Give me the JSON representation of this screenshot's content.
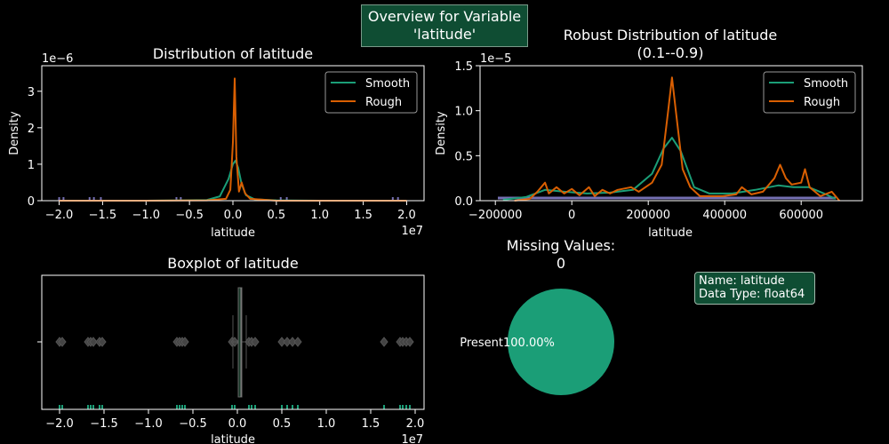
{
  "suptitle": {
    "line1": "Overview for Variable",
    "line2": "'latitude'"
  },
  "info": {
    "name_line": "Name: latitude",
    "dtype_line": "Data Type: float64"
  },
  "colors": {
    "smooth": "#1b9e77",
    "rough": "#d95f02",
    "rug": "#7570b3",
    "accent": "#1b9e77",
    "info_bg": "#0f4d33"
  },
  "chart_data": [
    {
      "id": "dist",
      "type": "line",
      "title": "Distribution of latitude",
      "xlabel": "latitude",
      "ylabel": "Density",
      "x_offset_label": "1e7",
      "y_offset_label": "1e−6",
      "xlim": [
        -2.2,
        2.2
      ],
      "ylim": [
        0,
        3.7
      ],
      "x_unit_scale": "1e7",
      "y_unit_scale": "1e-6",
      "xticks": [
        -2.0,
        -1.5,
        -1.0,
        -0.5,
        0.0,
        0.5,
        1.0,
        1.5,
        2.0
      ],
      "xtick_labels": [
        "−2.0",
        "−1.5",
        "−1.0",
        "−0.5",
        "0.0",
        "0.5",
        "1.0",
        "1.5",
        "2.0"
      ],
      "yticks": [
        0,
        1,
        2,
        3
      ],
      "ytick_labels": [
        "0",
        "1",
        "2",
        "3"
      ],
      "legend": [
        "Smooth",
        "Rough"
      ],
      "legend_position": "upper right",
      "series": [
        {
          "name": "Smooth",
          "x": [
            -2.0,
            -1.0,
            -0.3,
            -0.15,
            -0.05,
            0.0,
            0.03,
            0.06,
            0.1,
            0.15,
            0.25,
            0.5,
            1.0,
            2.0
          ],
          "y": [
            0.0,
            0.0,
            0.02,
            0.12,
            0.6,
            1.0,
            1.1,
            0.9,
            0.45,
            0.15,
            0.04,
            0.01,
            0.0,
            0.0
          ]
        },
        {
          "name": "Rough",
          "x": [
            -2.0,
            -1.0,
            -0.3,
            -0.08,
            -0.03,
            0.0,
            0.02,
            0.04,
            0.07,
            0.1,
            0.14,
            0.2,
            0.5,
            1.0,
            2.0
          ],
          "y": [
            0.0,
            0.0,
            0.01,
            0.05,
            0.3,
            1.6,
            3.35,
            1.2,
            0.25,
            0.5,
            0.2,
            0.05,
            0.0,
            0.0,
            0.0
          ]
        }
      ]
    },
    {
      "id": "robust",
      "type": "line",
      "title": "Robust Distribution of latitude",
      "subtitle": "(0.1--0.9)",
      "xlabel": "latitude",
      "ylabel": "Density",
      "y_offset_label": "1e−5",
      "xlim": [
        -240000,
        760000
      ],
      "ylim": [
        0,
        1.5
      ],
      "y_unit_scale": "1e-5",
      "xticks": [
        -200000,
        0,
        200000,
        400000,
        600000
      ],
      "xtick_labels": [
        "−200000",
        "0",
        "200000",
        "400000",
        "600000"
      ],
      "yticks": [
        0,
        0.5,
        1.0,
        1.5
      ],
      "ytick_labels": [
        "0.0",
        "0.5",
        "1.0",
        "1.5"
      ],
      "legend": [
        "Smooth",
        "Rough"
      ],
      "legend_position": "upper right",
      "series": [
        {
          "name": "Smooth",
          "x": [
            -180000,
            -120000,
            -70000,
            -20000,
            40000,
            100000,
            160000,
            210000,
            240000,
            262000,
            285000,
            320000,
            360000,
            420000,
            480000,
            540000,
            580000,
            620000,
            660000,
            690000
          ],
          "y": [
            0.01,
            0.04,
            0.12,
            0.1,
            0.08,
            0.09,
            0.12,
            0.3,
            0.58,
            0.7,
            0.55,
            0.15,
            0.08,
            0.08,
            0.12,
            0.17,
            0.15,
            0.15,
            0.08,
            0.02
          ]
        },
        {
          "name": "Rough",
          "x": [
            -150000,
            -110000,
            -90000,
            -70000,
            -60000,
            -40000,
            -20000,
            0,
            20000,
            45000,
            60000,
            80000,
            100000,
            120000,
            155000,
            175000,
            210000,
            235000,
            252000,
            262000,
            272000,
            290000,
            310000,
            335000,
            365000,
            395000,
            430000,
            445000,
            470000,
            500000,
            530000,
            545000,
            560000,
            575000,
            600000,
            610000,
            622000,
            650000,
            680000,
            700000
          ],
          "y": [
            0.0,
            0.02,
            0.1,
            0.2,
            0.08,
            0.15,
            0.08,
            0.13,
            0.06,
            0.15,
            0.05,
            0.12,
            0.08,
            0.12,
            0.15,
            0.1,
            0.2,
            0.4,
            1.0,
            1.37,
            1.0,
            0.35,
            0.15,
            0.05,
            0.05,
            0.05,
            0.07,
            0.15,
            0.07,
            0.1,
            0.25,
            0.4,
            0.25,
            0.18,
            0.2,
            0.35,
            0.15,
            0.05,
            0.1,
            0.0
          ]
        }
      ]
    },
    {
      "id": "box",
      "type": "box",
      "title": "Boxplot of latitude",
      "xlabel": "latitude",
      "x_offset_label": "1e7",
      "xlim": [
        -2.2,
        2.1
      ],
      "x_unit_scale": "1e7",
      "xticks": [
        -2.0,
        -1.5,
        -1.0,
        -0.5,
        0.0,
        0.5,
        1.0,
        1.5,
        2.0
      ],
      "xtick_labels": [
        "−2.0",
        "−1.5",
        "−1.0",
        "−0.5",
        "0.0",
        "0.5",
        "1.0",
        "1.5",
        "2.0"
      ],
      "box": {
        "q1": 0.01,
        "median": 0.04,
        "q3": 0.05,
        "whisker_low": -0.05,
        "whisker_high": 0.1
      },
      "outliers": [
        -2.0,
        -1.97,
        -1.68,
        -1.65,
        -1.62,
        -1.55,
        -1.52,
        -0.68,
        -0.65,
        -0.62,
        -0.59,
        -0.06,
        -0.03,
        0.13,
        0.16,
        0.2,
        0.5,
        0.56,
        0.62,
        0.68,
        1.65,
        1.83,
        1.86,
        1.9,
        1.94
      ]
    },
    {
      "id": "missing",
      "type": "pie",
      "title": "Missing Values:",
      "subtitle": "0",
      "slices": [
        {
          "label": "Present",
          "value": 100.0,
          "pct_label": "100.00%"
        }
      ]
    }
  ]
}
